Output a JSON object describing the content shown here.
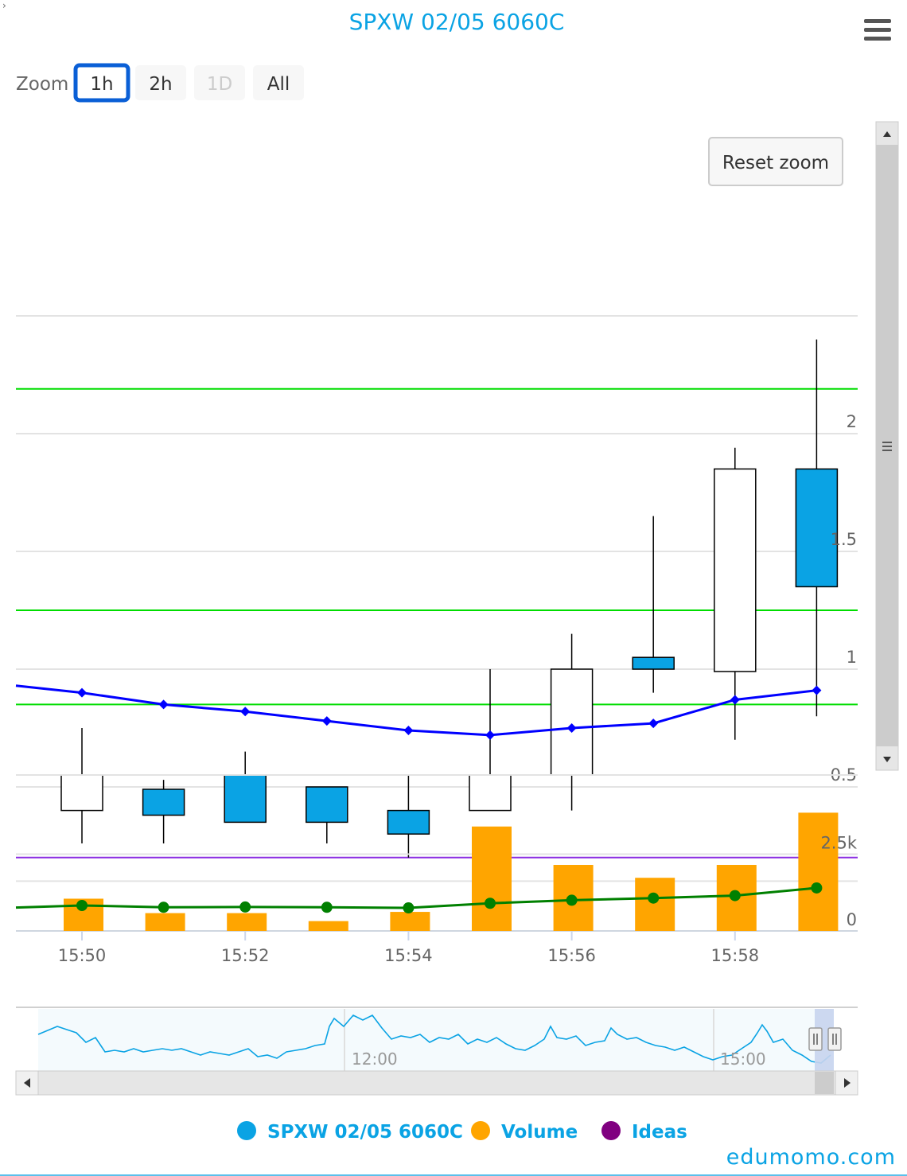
{
  "title": "SPXW 02/05 6060C",
  "zoom": {
    "label": "Zoom",
    "buttons": [
      {
        "label": "1h",
        "state": "selected"
      },
      {
        "label": "2h",
        "state": "normal"
      },
      {
        "label": "1D",
        "state": "disabled"
      },
      {
        "label": "All",
        "state": "normal"
      }
    ]
  },
  "reset_zoom_label": "Reset zoom",
  "navigator": {
    "tick_labels": [
      "12:00",
      "15:00"
    ]
  },
  "legend": [
    {
      "name": "SPXW 02/05 6060C",
      "color": "#0aa3e4"
    },
    {
      "name": "Volume",
      "color": "#ffa500"
    },
    {
      "name": "Ideas",
      "color": "#800080"
    }
  ],
  "brand": "edumomo.com",
  "colors": {
    "accent": "#0aa3e4",
    "up_candle": "#ffffff",
    "down_candle": "#0aa3e4",
    "volume": "#ffa500",
    "vwap": "#0000ff",
    "volume_avg": "#008000",
    "levels": "#00dd00",
    "ideas": "#8a2be2"
  },
  "chart_data": [
    {
      "type": "candlestick",
      "title": "SPXW 02/05 6060C",
      "x": [
        "15:50",
        "15:51",
        "15:52",
        "15:53",
        "15:54",
        "15:55",
        "15:56",
        "15:57",
        "15:58",
        "15:59"
      ],
      "xtick_labels": [
        "15:50",
        "15:52",
        "15:54",
        "15:56",
        "15:58"
      ],
      "ytick_labels": [
        "0.5",
        "1",
        "1.5",
        "2"
      ],
      "yticks": [
        0.5,
        1,
        1.5,
        2
      ],
      "ylim": [
        0.1,
        2.5
      ],
      "candles": [
        {
          "open": 0.4,
          "high": 0.75,
          "low": 0.26,
          "close": 0.55
        },
        {
          "open": 0.49,
          "high": 0.53,
          "low": 0.26,
          "close": 0.38
        },
        {
          "open": 0.55,
          "high": 0.65,
          "low": 0.35,
          "close": 0.35
        },
        {
          "open": 0.5,
          "high": 0.5,
          "low": 0.26,
          "close": 0.35
        },
        {
          "open": 0.4,
          "high": 0.55,
          "low": 0.2,
          "close": 0.3
        },
        {
          "open": 0.4,
          "high": 1.0,
          "low": 0.4,
          "close": 0.55
        },
        {
          "open": 0.55,
          "high": 1.15,
          "low": 0.4,
          "close": 1.0
        },
        {
          "open": 1.05,
          "high": 1.65,
          "low": 0.9,
          "close": 1.0
        },
        {
          "open": 0.99,
          "high": 1.94,
          "low": 0.7,
          "close": 1.85
        },
        {
          "open": 1.85,
          "high": 2.4,
          "low": 0.8,
          "close": 1.35
        }
      ],
      "vwap": [
        0.9,
        0.85,
        0.82,
        0.78,
        0.74,
        0.72,
        0.75,
        0.77,
        0.87,
        0.91
      ],
      "horizontal_lines": [
        {
          "name": "level",
          "value": 2.19,
          "color": "#00dd00"
        },
        {
          "name": "level",
          "value": 1.25,
          "color": "#00dd00"
        },
        {
          "name": "level",
          "value": 0.85,
          "color": "#00dd00"
        },
        {
          "name": "Ideas",
          "value": 0.2,
          "color": "#8a2be2"
        }
      ],
      "grid": true
    },
    {
      "type": "bar",
      "title": "Volume",
      "x": [
        "15:50",
        "15:51",
        "15:52",
        "15:53",
        "15:54",
        "15:55",
        "15:56",
        "15:57",
        "15:58",
        "15:59"
      ],
      "values": [
        1050,
        580,
        580,
        320,
        620,
        3400,
        2150,
        1730,
        2150,
        3850
      ],
      "average_line": [
        830,
        770,
        780,
        770,
        750,
        900,
        1000,
        1070,
        1150,
        1400
      ],
      "ytick_labels": [
        "0",
        "2.5k"
      ],
      "yticks": [
        0,
        2500
      ],
      "ylim": [
        0,
        4500
      ],
      "grid": true
    }
  ]
}
